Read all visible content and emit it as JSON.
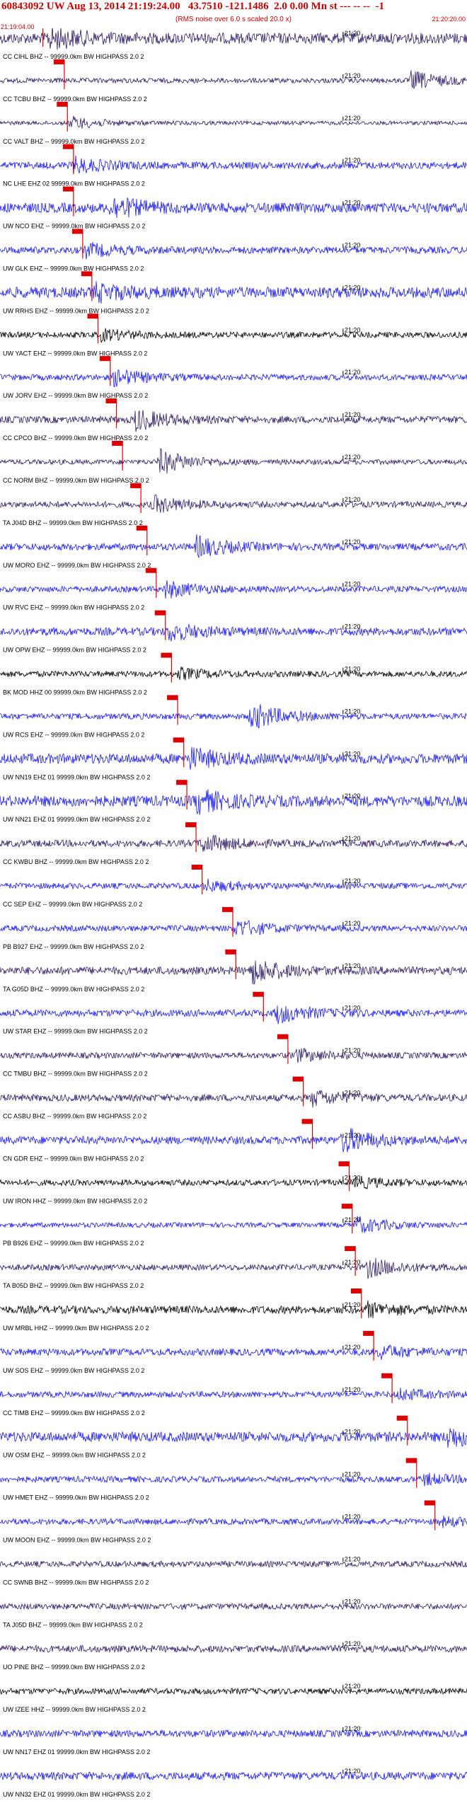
{
  "header": {
    "title": "60843092 UW Aug 13, 2014 21:19:24.00   43.7510 -121.1486  2.0 0.00 Mn st --- -- --  -1",
    "subtitle": "(RMS noise over 6.0 s scaled 20.0 x)",
    "start_time": "21:19:04.00",
    "end_time": "21:20:20.00"
  },
  "chart_data": {
    "type": "line",
    "title": "60843092 UW Aug 13, 2014 21:19:24.00   43.7510 -121.1486  2.0 0.00 Mn st --- -- --  -1",
    "xlabel": "",
    "ylabel": "",
    "xlim": [
      "21:19:04.00",
      "21:20:20.00"
    ],
    "tick_label": "21:20",
    "tick_time": "21:20:00",
    "grid": false,
    "colors": {
      "blue": "#1a1aee",
      "purple": "#2e1a66",
      "black": "#000000",
      "pick": "#dd0000"
    },
    "series": [
      {
        "label": "CC CIHL BHZ -- 99999.0km BW  HIGHPASS  2.0  2",
        "pick_time": "21:19:11.0",
        "color": "purple",
        "amp": 0.55,
        "burst_time": "21:19:12.0",
        "burst_amp": 1.0
      },
      {
        "label": "CC TCBU BHZ -- 99999.0km BW  HIGHPASS  2.0  2",
        "pick_time": "21:19:14.5",
        "color": "purple",
        "amp": 0.25,
        "burst_time": "21:20:11.0",
        "burst_amp": 0.9
      },
      {
        "label": "CC VALT BHZ -- 99999.0km BW  HIGHPASS  2.0  2",
        "pick_time": "21:19:15.0",
        "color": "purple",
        "amp": 0.2,
        "burst_time": "21:19:15.5",
        "burst_amp": 0.6
      },
      {
        "label": "NC LHE EHZ 02 99999.0km BW  HIGHPASS  2.0  2",
        "pick_time": "21:19:16.0",
        "color": "blue",
        "amp": 0.35,
        "burst_time": "21:19:16.0",
        "burst_amp": 0.7
      },
      {
        "label": "UW NCO EHZ -- 99999.0km BW  HIGHPASS  2.0  2",
        "pick_time": "21:19:16.0",
        "color": "blue",
        "amp": 0.5,
        "burst_time": "21:19:22.0",
        "burst_amp": 1.0
      },
      {
        "label": "UW GLK EHZ -- 99999.0km BW  HIGHPASS  2.0  2",
        "pick_time": "21:19:17.5",
        "color": "blue",
        "amp": 0.35,
        "burst_time": "21:19:18.0",
        "burst_amp": 0.6
      },
      {
        "label": "UW RRHS EHZ -- 99999.0km BW  HIGHPASS  2.0  2",
        "pick_time": "21:19:19.0",
        "color": "blue",
        "amp": 0.55,
        "burst_time": "21:19:19.5",
        "burst_amp": 0.7
      },
      {
        "label": "UW YACT EHZ -- 99999.0km BW  HIGHPASS  2.0  2",
        "pick_time": "21:19:20.0",
        "color": "black",
        "amp": 0.3,
        "burst_time": "21:19:20.5",
        "burst_amp": 0.5
      },
      {
        "label": "UW JORV EHZ -- 99999.0km BW  HIGHPASS  2.0  2",
        "pick_time": "21:19:22.0",
        "color": "blue",
        "amp": 0.3,
        "burst_time": "21:19:22.5",
        "burst_amp": 0.8
      },
      {
        "label": "CC CPCO BHZ -- 99999.0km BW  HIGHPASS  2.0  2",
        "pick_time": "21:19:23.0",
        "color": "purple",
        "amp": 0.35,
        "burst_time": "21:19:26.0",
        "burst_amp": 1.0
      },
      {
        "label": "CC NORM BHZ -- 99999.0km BW  HIGHPASS  2.0  2",
        "pick_time": "21:19:24.0",
        "color": "purple",
        "amp": 0.25,
        "burst_time": "21:19:30.0",
        "burst_amp": 1.2
      },
      {
        "label": "TA J04D BHZ -- 99999.0km BW  HIGHPASS  2.0  2",
        "pick_time": "21:19:27.0",
        "color": "purple",
        "amp": 0.3,
        "burst_time": "21:19:29.0",
        "burst_amp": 0.8
      },
      {
        "label": "UW MORO EHZ -- 99999.0km BW  HIGHPASS  2.0  2",
        "pick_time": "21:19:28.0",
        "color": "blue",
        "amp": 0.35,
        "burst_time": "21:19:36.0",
        "burst_amp": 1.0
      },
      {
        "label": "UW RVC EHZ -- 99999.0km BW  HIGHPASS  2.0  2",
        "pick_time": "21:19:29.5",
        "color": "blue",
        "amp": 0.3,
        "burst_time": "21:19:31.0",
        "burst_amp": 0.8
      },
      {
        "label": "UW OPW EHZ -- 99999.0km BW  HIGHPASS  2.0  2",
        "pick_time": "21:19:31.0",
        "color": "blue",
        "amp": 0.4,
        "burst_time": "21:19:31.5",
        "burst_amp": 0.8
      },
      {
        "label": "BK MOD HHZ 00 99999.0km BW  HIGHPASS  2.0  2",
        "pick_time": "21:19:32.0",
        "color": "black",
        "amp": 0.3,
        "burst_time": "21:19:33.0",
        "burst_amp": 0.5
      },
      {
        "label": "UW RCS EHZ -- 99999.0km BW  HIGHPASS  2.0  2",
        "pick_time": "21:19:33.0",
        "color": "blue",
        "amp": 0.3,
        "burst_time": "21:19:45.0",
        "burst_amp": 1.3
      },
      {
        "label": "UW NN19 EHZ 01 99999.0km BW  HIGHPASS  2.0  2",
        "pick_time": "21:19:34.0",
        "color": "blue",
        "amp": 0.5,
        "burst_time": "21:19:35.0",
        "burst_amp": 0.9
      },
      {
        "label": "UW NN21 EHZ 01 99999.0km BW  HIGHPASS  2.0  2",
        "pick_time": "21:19:34.5",
        "color": "blue",
        "amp": 0.55,
        "burst_time": "21:19:36.0",
        "burst_amp": 1.0
      },
      {
        "label": "CC KWBU BHZ -- 99999.0km BW  HIGHPASS  2.0  2",
        "pick_time": "21:19:36.0",
        "color": "purple",
        "amp": 0.35,
        "burst_time": "21:19:37.0",
        "burst_amp": 0.8
      },
      {
        "label": "CC SEP EHZ -- 99999.0km BW  HIGHPASS  2.0  2",
        "pick_time": "21:19:37.0",
        "color": "blue",
        "amp": 0.3,
        "burst_time": "21:19:37.5",
        "burst_amp": 0.5
      },
      {
        "label": "PB B927 EHZ -- 99999.0km BW  HIGHPASS  2.0  2",
        "pick_time": "21:19:42.0",
        "color": "blue",
        "amp": 0.3,
        "burst_time": "21:19:42.5",
        "burst_amp": 0.8
      },
      {
        "label": "TA G05D BHZ -- 99999.0km BW  HIGHPASS  2.0  2",
        "pick_time": "21:19:42.5",
        "color": "purple",
        "amp": 0.4,
        "burst_time": "21:19:45.0",
        "burst_amp": 1.2
      },
      {
        "label": "UW STAR EHZ -- 99999.0km BW  HIGHPASS  2.0  2",
        "pick_time": "21:19:47.0",
        "color": "blue",
        "amp": 0.35,
        "burst_time": "21:19:49.0",
        "burst_amp": 0.9
      },
      {
        "label": "CC TMBU BHZ -- 99999.0km BW  HIGHPASS  2.0  2",
        "pick_time": "21:19:51.0",
        "color": "purple",
        "amp": 0.3,
        "burst_time": "21:19:52.0",
        "burst_amp": 0.6
      },
      {
        "label": "CC ASBU BHZ -- 99999.0km BW  HIGHPASS  2.0  2",
        "pick_time": "21:19:53.5",
        "color": "purple",
        "amp": 0.35,
        "burst_time": "21:19:55.0",
        "burst_amp": 0.7
      },
      {
        "label": "CN GDR EHZ -- 99999.0km BW  HIGHPASS  2.0  2",
        "pick_time": "21:19:55.0",
        "color": "blue",
        "amp": 0.4,
        "burst_time": "21:20:00.0",
        "burst_amp": 1.1
      },
      {
        "label": "UW IRON HHZ -- 99999.0km BW  HIGHPASS  2.0  2",
        "pick_time": "21:20:01.0",
        "color": "black",
        "amp": 0.3,
        "burst_time": "21:20:02.0",
        "burst_amp": 0.5
      },
      {
        "label": "PB B926 EHZ -- 99999.0km BW  HIGHPASS  2.0  2",
        "pick_time": "21:20:01.5",
        "color": "blue",
        "amp": 0.25,
        "burst_time": "21:20:02.0",
        "burst_amp": 0.8
      },
      {
        "label": "TA B05D BHZ -- 99999.0km BW  HIGHPASS  2.0  2",
        "pick_time": "21:20:02.0",
        "color": "purple",
        "amp": 0.3,
        "burst_time": "21:20:04.0",
        "burst_amp": 0.9
      },
      {
        "label": "UW MRBL HHZ -- 99999.0km BW  HIGHPASS  2.0  2",
        "pick_time": "21:20:03.0",
        "color": "black",
        "amp": 0.4,
        "burst_time": "21:20:04.0",
        "burst_amp": 0.6
      },
      {
        "label": "UW SOS EHZ -- 99999.0km BW  HIGHPASS  2.0  2",
        "pick_time": "21:20:05.0",
        "color": "blue",
        "amp": 0.35,
        "burst_time": "21:20:06.0",
        "burst_amp": 0.6
      },
      {
        "label": "CC TIMB EHZ -- 99999.0km BW  HIGHPASS  2.0  2",
        "pick_time": "21:20:08.0",
        "color": "blue",
        "amp": 0.3,
        "burst_time": "21:20:09.0",
        "burst_amp": 0.5
      },
      {
        "label": "UW OSM EHZ -- 99999.0km BW  HIGHPASS  2.0  2",
        "pick_time": "21:20:10.5",
        "color": "blue",
        "amp": 0.5,
        "burst_time": "21:20:17.0",
        "burst_amp": 0.9
      },
      {
        "label": "UW HMET EHZ -- 99999.0km BW  HIGHPASS  2.0  2",
        "pick_time": "21:20:12.0",
        "color": "blue",
        "amp": 0.3,
        "burst_time": "21:20:13.0",
        "burst_amp": 0.5
      },
      {
        "label": "UW MOON EHZ -- 99999.0km BW  HIGHPASS  2.0  2",
        "pick_time": "21:20:15.0",
        "color": "blue",
        "amp": 0.3,
        "burst_time": "21:20:16.0",
        "burst_amp": 0.4
      },
      {
        "label": "CC SWNB BHZ -- 99999.0km BW  HIGHPASS  2.0  2",
        "pick_time": "",
        "color": "purple",
        "amp": 0.3,
        "burst_time": "",
        "burst_amp": 0
      },
      {
        "label": "TA J05D BHZ -- 99999.0km BW  HIGHPASS  2.0  2",
        "pick_time": "",
        "color": "purple",
        "amp": 0.3,
        "burst_time": "",
        "burst_amp": 0
      },
      {
        "label": "UO PINE BHZ -- 99999.0km BW  HIGHPASS  2.0  2",
        "pick_time": "",
        "color": "purple",
        "amp": 0.35,
        "burst_time": "",
        "burst_amp": 0
      },
      {
        "label": "UW IZEE HHZ -- 99999.0km BW  HIGHPASS  2.0  2",
        "pick_time": "",
        "color": "black",
        "amp": 0.3,
        "burst_time": "",
        "burst_amp": 0
      },
      {
        "label": "UW NN17 EHZ 01 99999.0km BW  HIGHPASS  2.0  2",
        "pick_time": "",
        "color": "blue",
        "amp": 0.35,
        "burst_time": "",
        "burst_amp": 0
      },
      {
        "label": "UW NN32 EHZ 01 99999.0km BW  HIGHPASS  2.0  2",
        "pick_time": "",
        "color": "blue",
        "amp": 0.4,
        "burst_time": "",
        "burst_amp": 0
      }
    ]
  }
}
